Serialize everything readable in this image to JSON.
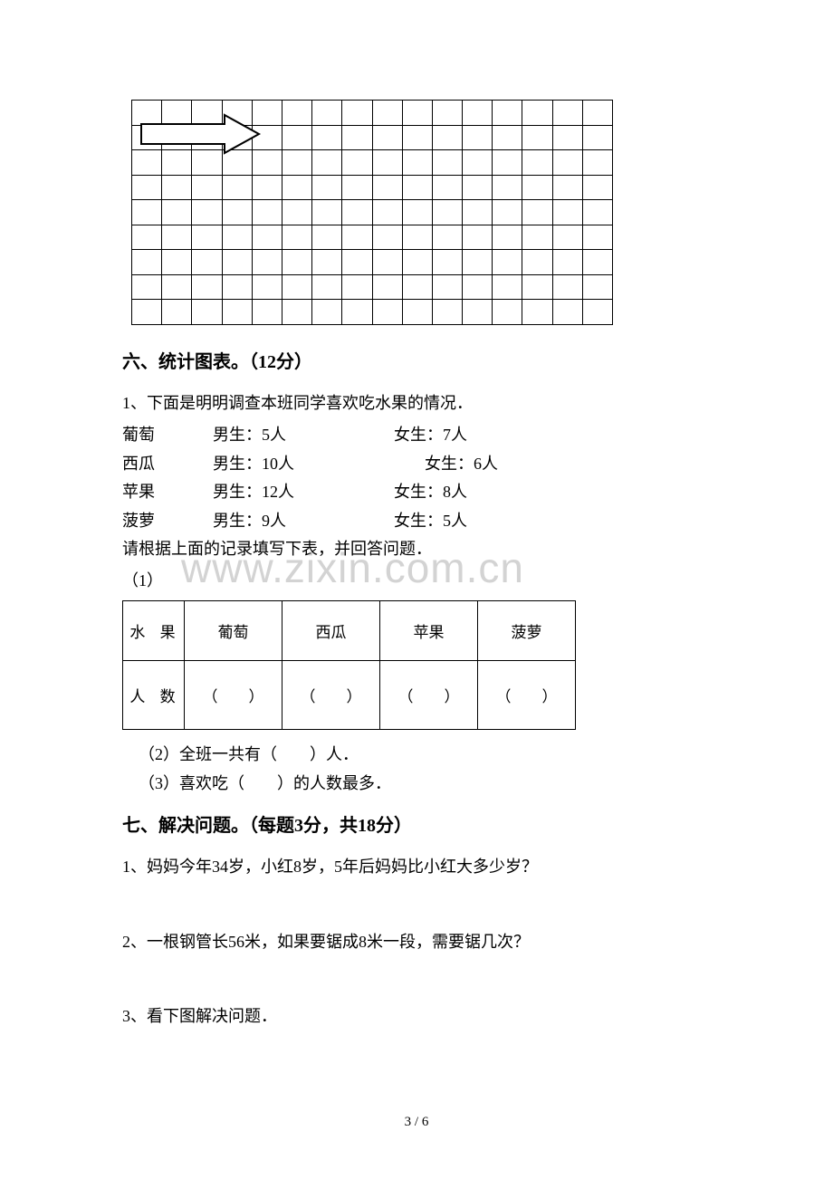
{
  "grid": {
    "rows": 9,
    "cols": 16
  },
  "section6": {
    "heading": "六、统计图表。（12分）",
    "intro": "1、下面是明明调查本班同学喜欢吃水果的情况．",
    "rows": [
      {
        "fruit": "葡萄",
        "boy": "男生：5人",
        "girl": "女生：7人"
      },
      {
        "fruit": "西瓜",
        "boy": "男生：10人",
        "girl": "女生：6人"
      },
      {
        "fruit": "苹果",
        "boy": "男生：12人",
        "girl": "女生：8人"
      },
      {
        "fruit": "菠萝",
        "boy": "男生：9人",
        "girl": "女生：5人"
      }
    ],
    "instruction": "请根据上面的记录填写下表，并回答问题．",
    "sub1": "（1）",
    "table": {
      "header0": "水 果",
      "headers": [
        "葡萄",
        "西瓜",
        "苹果",
        "菠萝"
      ],
      "rowLabel": "人 数",
      "blank": "（　　）"
    },
    "sub2": "（2）全班一共有（　　）人．",
    "sub3": "（3）喜欢吃（　　）的人数最多．"
  },
  "section7": {
    "heading": "七、解决问题。（每题3分，共18分）",
    "q1": "1、妈妈今年34岁，小红8岁，5年后妈妈比小红大多少岁？",
    "q2": "2、一根钢管长56米，如果要锯成8米一段，需要锯几次？",
    "q3": "3、看下图解决问题．"
  },
  "watermark": "www.zixin.com.cn",
  "pageNum": "3 / 6"
}
